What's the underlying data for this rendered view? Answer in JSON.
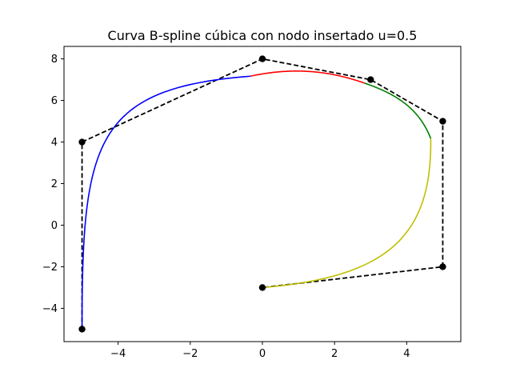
{
  "chart_data": {
    "type": "line",
    "title": "Curva B-spline cúbica con nodo insertado u=0.5",
    "xlabel": "",
    "ylabel": "",
    "xlim": [
      -5.5,
      5.5
    ],
    "ylim": [
      -5.6,
      8.6
    ],
    "x_ticks": [
      -4,
      -2,
      0,
      2,
      4
    ],
    "y_ticks": [
      -4,
      -2,
      0,
      2,
      4,
      6,
      8
    ],
    "x_tick_labels": [
      "−4",
      "−2",
      "0",
      "2",
      "4"
    ],
    "y_tick_labels": [
      "−4",
      "−2",
      "0",
      "2",
      "4",
      "6",
      "8"
    ],
    "grid": false,
    "control_polygon": {
      "style": "dashed",
      "color": "#000000",
      "points": [
        {
          "x": -5,
          "y": -5
        },
        {
          "x": -5,
          "y": 4
        },
        {
          "x": 0,
          "y": 8
        },
        {
          "x": 3,
          "y": 7
        },
        {
          "x": 5,
          "y": 5
        },
        {
          "x": 5,
          "y": -2
        },
        {
          "x": 0,
          "y": -3
        }
      ]
    },
    "curve_segments": [
      {
        "color": "#0000ff",
        "bspline_control_points": [
          [
            -5,
            -5
          ],
          [
            -5,
            4
          ],
          [
            0,
            8
          ],
          [
            3,
            7
          ]
        ]
      },
      {
        "color": "#ff0000",
        "bspline_control_points": [
          [
            -5,
            4
          ],
          [
            0,
            8
          ],
          [
            3,
            7
          ],
          [
            5,
            5
          ]
        ]
      },
      {
        "color": "#008000",
        "bspline_control_points": [
          [
            0,
            8
          ],
          [
            3,
            7
          ],
          [
            5,
            5
          ],
          [
            5,
            -2
          ]
        ]
      },
      {
        "color": "#bfbf00",
        "bspline_control_points": [
          [
            3,
            7
          ],
          [
            5,
            5
          ],
          [
            5,
            -2
          ],
          [
            0,
            -3
          ]
        ]
      }
    ],
    "curve_endpoints": {
      "start": {
        "x": -5,
        "y": -5
      },
      "end": {
        "x": 0,
        "y": -3
      }
    },
    "legend": "none"
  }
}
